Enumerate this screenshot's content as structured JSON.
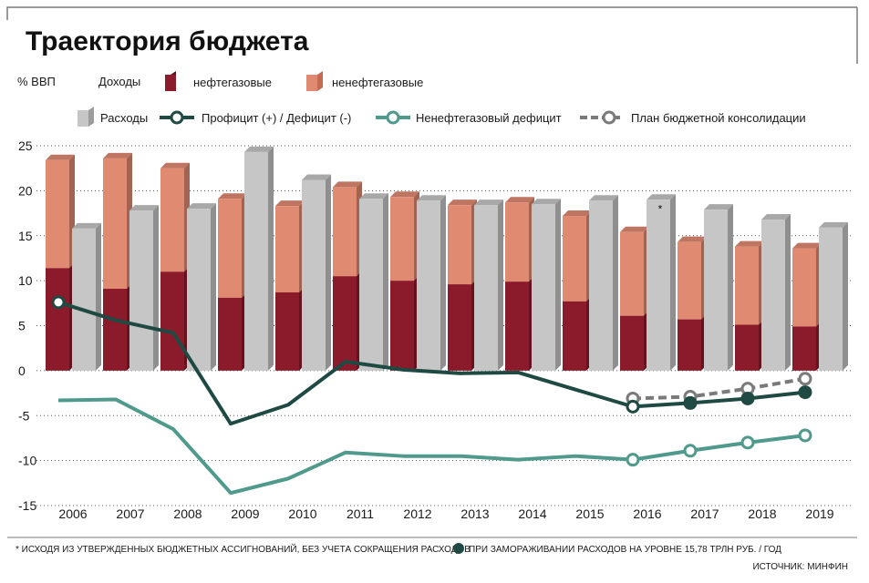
{
  "title": "Траектория бюджета",
  "unit_label": "% ВВП",
  "legend": {
    "revenue_label": "Доходы",
    "oil_gas": "нефтегазовые",
    "non_oil_gas": "ненефтегазовые",
    "expenses": "Расходы",
    "surplus_deficit": "Профицит (+) / Дефицит (-)",
    "non_oil_deficit": "Ненефтегазовый дефицит",
    "consolidation_plan": "План бюджетной консолидации"
  },
  "footnotes": {
    "asterisk_note": "* ИСХОДЯ ИЗ УТВЕРЖДЕННЫХ БЮДЖЕТНЫХ АССИГНОВАНИЙ, БЕЗ УЧЕТА СОКРАЩЕНИЯ РАСХОДОВ",
    "freeze_note": "ПРИ ЗАМОРАЖИВАНИИ РАСХОДОВ НА УРОВНЕ 15,78 ТРЛН РУБ. / ГОД",
    "source": "ИСТОЧНИК: МИНФИН"
  },
  "colors": {
    "oil_gas": "#8b1a2b",
    "non_oil_gas": "#e08a72",
    "expenses": "#c6c6c6",
    "surplus_line": "#1f4a44",
    "non_oil_line": "#4f9a8d",
    "plan_line": "#7a7a7a"
  },
  "chart_data": {
    "type": "bar",
    "categories": [
      "2006",
      "2007",
      "2008",
      "2009",
      "2010",
      "2011",
      "2012",
      "2013",
      "2014",
      "2015",
      "2016",
      "2017",
      "2018",
      "2019"
    ],
    "y_ticks": [
      "25",
      "20",
      "15",
      "10",
      "5",
      "0",
      "-5",
      "-10",
      "-15"
    ],
    "ylim": [
      -15,
      25
    ],
    "grid": "dotted horizontal",
    "legend_position": "top",
    "asterisk_on": "2016",
    "series": [
      {
        "name": "нефтегазовые",
        "kind": "stacked-bar",
        "values": [
          11.4,
          9.1,
          11.0,
          8.1,
          8.7,
          10.5,
          10.0,
          9.6,
          9.9,
          7.7,
          6.1,
          5.7,
          5.1,
          4.9
        ]
      },
      {
        "name": "ненефтегазовые",
        "kind": "stacked-bar",
        "values": [
          12.0,
          14.5,
          11.5,
          11.0,
          9.6,
          9.9,
          9.3,
          8.8,
          8.8,
          9.5,
          9.3,
          8.6,
          8.7,
          8.7
        ]
      },
      {
        "name": "Расходы",
        "kind": "bar",
        "values": [
          15.8,
          17.8,
          18.0,
          24.3,
          21.2,
          19.1,
          18.9,
          18.4,
          18.5,
          18.9,
          19.0,
          17.9,
          16.8,
          15.9
        ]
      },
      {
        "name": "Профицит (+) / Дефицит (-)",
        "kind": "line",
        "values": [
          7.6,
          5.6,
          4.2,
          -5.9,
          -3.8,
          1.0,
          0.1,
          -0.3,
          -0.2,
          null,
          -4.0,
          -3.6,
          -3.1,
          -2.4
        ]
      },
      {
        "name": "Ненефтегазовый дефицит",
        "kind": "line",
        "values": [
          -3.3,
          -3.2,
          -6.5,
          -13.6,
          -12.0,
          -9.1,
          -9.5,
          -9.5,
          -9.9,
          -9.5,
          -9.9,
          -8.9,
          -8.0,
          -7.2
        ]
      },
      {
        "name": "План бюджетной консолидации",
        "kind": "dashed-line",
        "values": [
          null,
          null,
          null,
          null,
          null,
          null,
          null,
          null,
          null,
          null,
          -3.1,
          -2.9,
          -2.0,
          -0.9
        ]
      }
    ]
  }
}
